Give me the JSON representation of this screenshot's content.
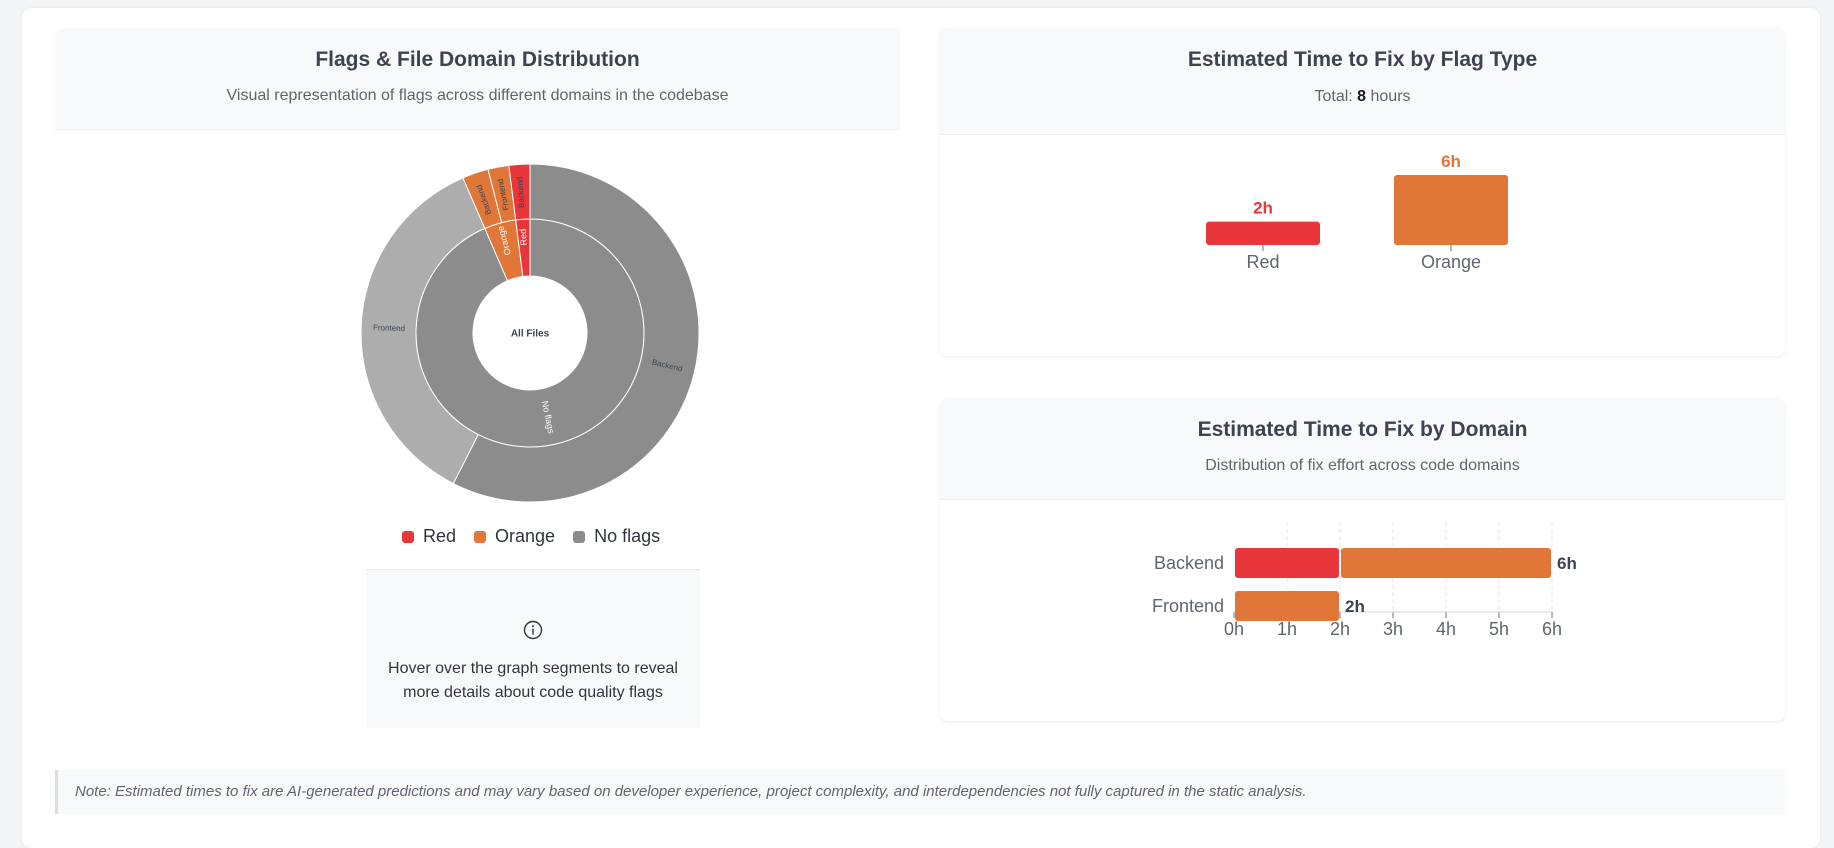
{
  "left_card": {
    "title": "Flags & File Domain Distribution",
    "subtitle": "Visual representation of flags across different domains in the codebase",
    "center_label": "All Files",
    "legend": [
      {
        "label": "Red",
        "color": "#e8363a"
      },
      {
        "label": "Orange",
        "color": "#e07637"
      },
      {
        "label": "No flags",
        "color": "#8c8c8c"
      }
    ],
    "info_icon": "info-circle-icon",
    "info_text": "Hover over the graph segments to reveal more details about code quality flags"
  },
  "flag_card": {
    "title": "Estimated Time to Fix by Flag Type",
    "total_prefix": "Total: ",
    "total_value": "8",
    "total_suffix": " hours"
  },
  "domain_card": {
    "title": "Estimated Time to Fix by Domain",
    "subtitle": "Distribution of fix effort across code domains"
  },
  "note": "Note: Estimated times to fix are AI-generated predictions and may vary based on developer experience, project complexity, and interdependencies not fully captured in the static analysis.",
  "colors": {
    "red": "#e8363a",
    "orange": "#e07637",
    "no_flags": "#8c8c8c",
    "no_flags_light": "#adadad"
  },
  "chart_data": [
    {
      "type": "sunburst",
      "title": "Flags & File Domain Distribution",
      "center": "All Files",
      "inner_ring": [
        {
          "name": "Red",
          "value": 2,
          "color": "#e8363a"
        },
        {
          "name": "Orange",
          "value": 4.5,
          "color": "#e07637"
        },
        {
          "name": "No flags",
          "value": 93.5,
          "color": "#8c8c8c"
        }
      ],
      "outer_ring": [
        {
          "parent": "Red",
          "name": "Backend",
          "value": 2,
          "color": "#e8363a"
        },
        {
          "parent": "Orange",
          "name": "Frontend",
          "value": 2,
          "color": "#e07637"
        },
        {
          "parent": "Orange",
          "name": "Backend",
          "value": 2.5,
          "color": "#e07637"
        },
        {
          "parent": "No flags",
          "name": "Backend",
          "value": 57.5,
          "color": "#8c8c8c"
        },
        {
          "parent": "No flags",
          "name": "Frontend",
          "value": 36,
          "color": "#adadad"
        }
      ]
    },
    {
      "type": "bar",
      "title": "Estimated Time to Fix by Flag Type",
      "categories": [
        "Red",
        "Orange"
      ],
      "values": [
        2,
        6
      ],
      "value_labels": [
        "2h",
        "6h"
      ],
      "colors": [
        "#e8363a",
        "#e07637"
      ]
    },
    {
      "type": "bar",
      "orientation": "horizontal",
      "stacked": true,
      "title": "Estimated Time to Fix by Domain",
      "categories": [
        "Backend",
        "Frontend"
      ],
      "series": [
        {
          "name": "Red",
          "values": [
            2,
            0
          ],
          "color": "#e8363a"
        },
        {
          "name": "Orange",
          "values": [
            4,
            2
          ],
          "color": "#e07637"
        }
      ],
      "totals": [
        "6h",
        "2h"
      ],
      "xticks": [
        "0h",
        "1h",
        "2h",
        "3h",
        "4h",
        "5h",
        "6h"
      ],
      "xlim": [
        0,
        6
      ],
      "grid": true
    }
  ]
}
